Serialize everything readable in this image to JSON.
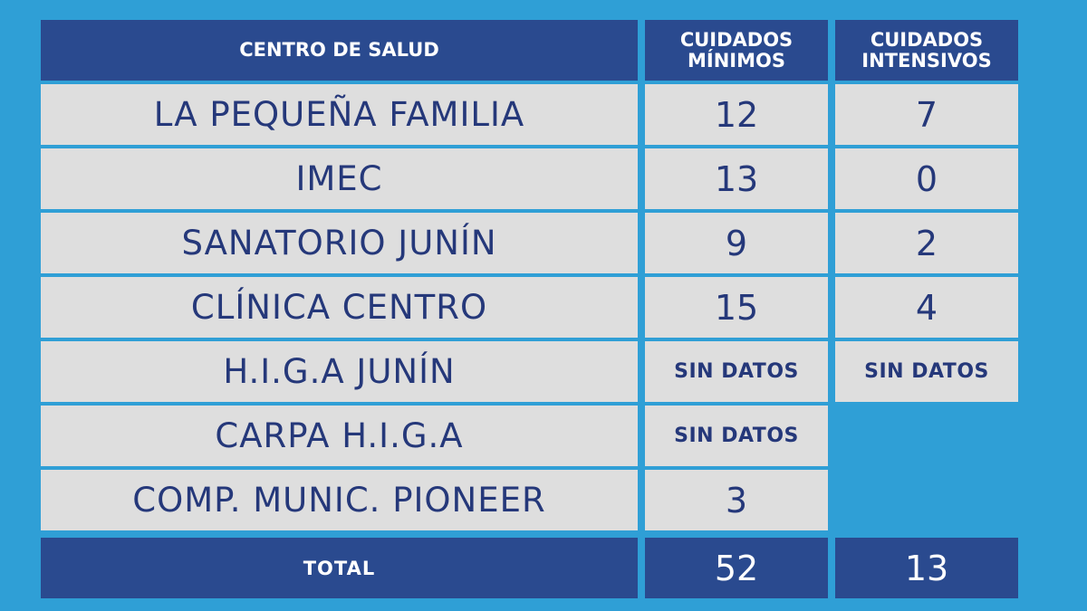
{
  "headers": {
    "centro": "CENTRO DE SALUD",
    "minimos": "CUIDADOS\nMÍNIMOS",
    "intensivos": "CUIDADOS\nINTENSIVOS"
  },
  "rows": [
    {
      "name": "LA PEQUEÑA FAMILIA",
      "minimos": "12",
      "intensivos": "7"
    },
    {
      "name": "IMEC",
      "minimos": "13",
      "intensivos": "0"
    },
    {
      "name": "SANATORIO JUNÍN",
      "minimos": "9",
      "intensivos": "2"
    },
    {
      "name": "CLÍNICA CENTRO",
      "minimos": "15",
      "intensivos": "4"
    },
    {
      "name": "H.I.G.A JUNÍN",
      "minimos": "SIN DATOS",
      "intensivos": "SIN DATOS"
    },
    {
      "name": "CARPA H.I.G.A",
      "minimos": "SIN DATOS"
    },
    {
      "name": "COMP. MUNIC. PIONEER",
      "minimos": "3"
    }
  ],
  "total": {
    "label": "TOTAL",
    "minimos": "52",
    "intensivos": "13"
  },
  "colors": {
    "background": "#2f9fd6",
    "header": "#2a4a8f",
    "cell": "#dedede",
    "text": "#25387a"
  }
}
